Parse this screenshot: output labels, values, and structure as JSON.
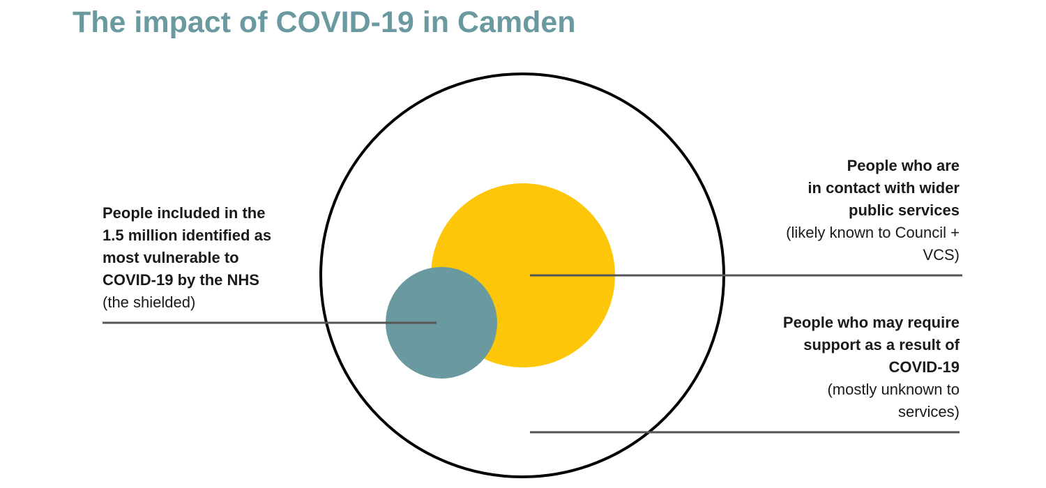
{
  "title": "The impact of COVID-19 in Camden",
  "colors": {
    "title": "#6a9aa0",
    "public_services_circle": "#fdc609",
    "shielded_circle": "#6a9aa0",
    "outer_circle_stroke": "#000000",
    "leader_line": "#555555"
  },
  "groups": {
    "shielded": {
      "heading": "People included in the\n1.5 million identified as\nmost vulnerable to\nCOVID-19 by the NHS",
      "note": "(the shielded)"
    },
    "public_services": {
      "heading": "People who are\nin contact with wider\npublic services",
      "note": "(likely known to Council +\nVCS)"
    },
    "covid_support": {
      "heading": "People who may require\nsupport as a result of\nCOVID-19",
      "note": "(mostly unknown to\nservices)"
    }
  }
}
